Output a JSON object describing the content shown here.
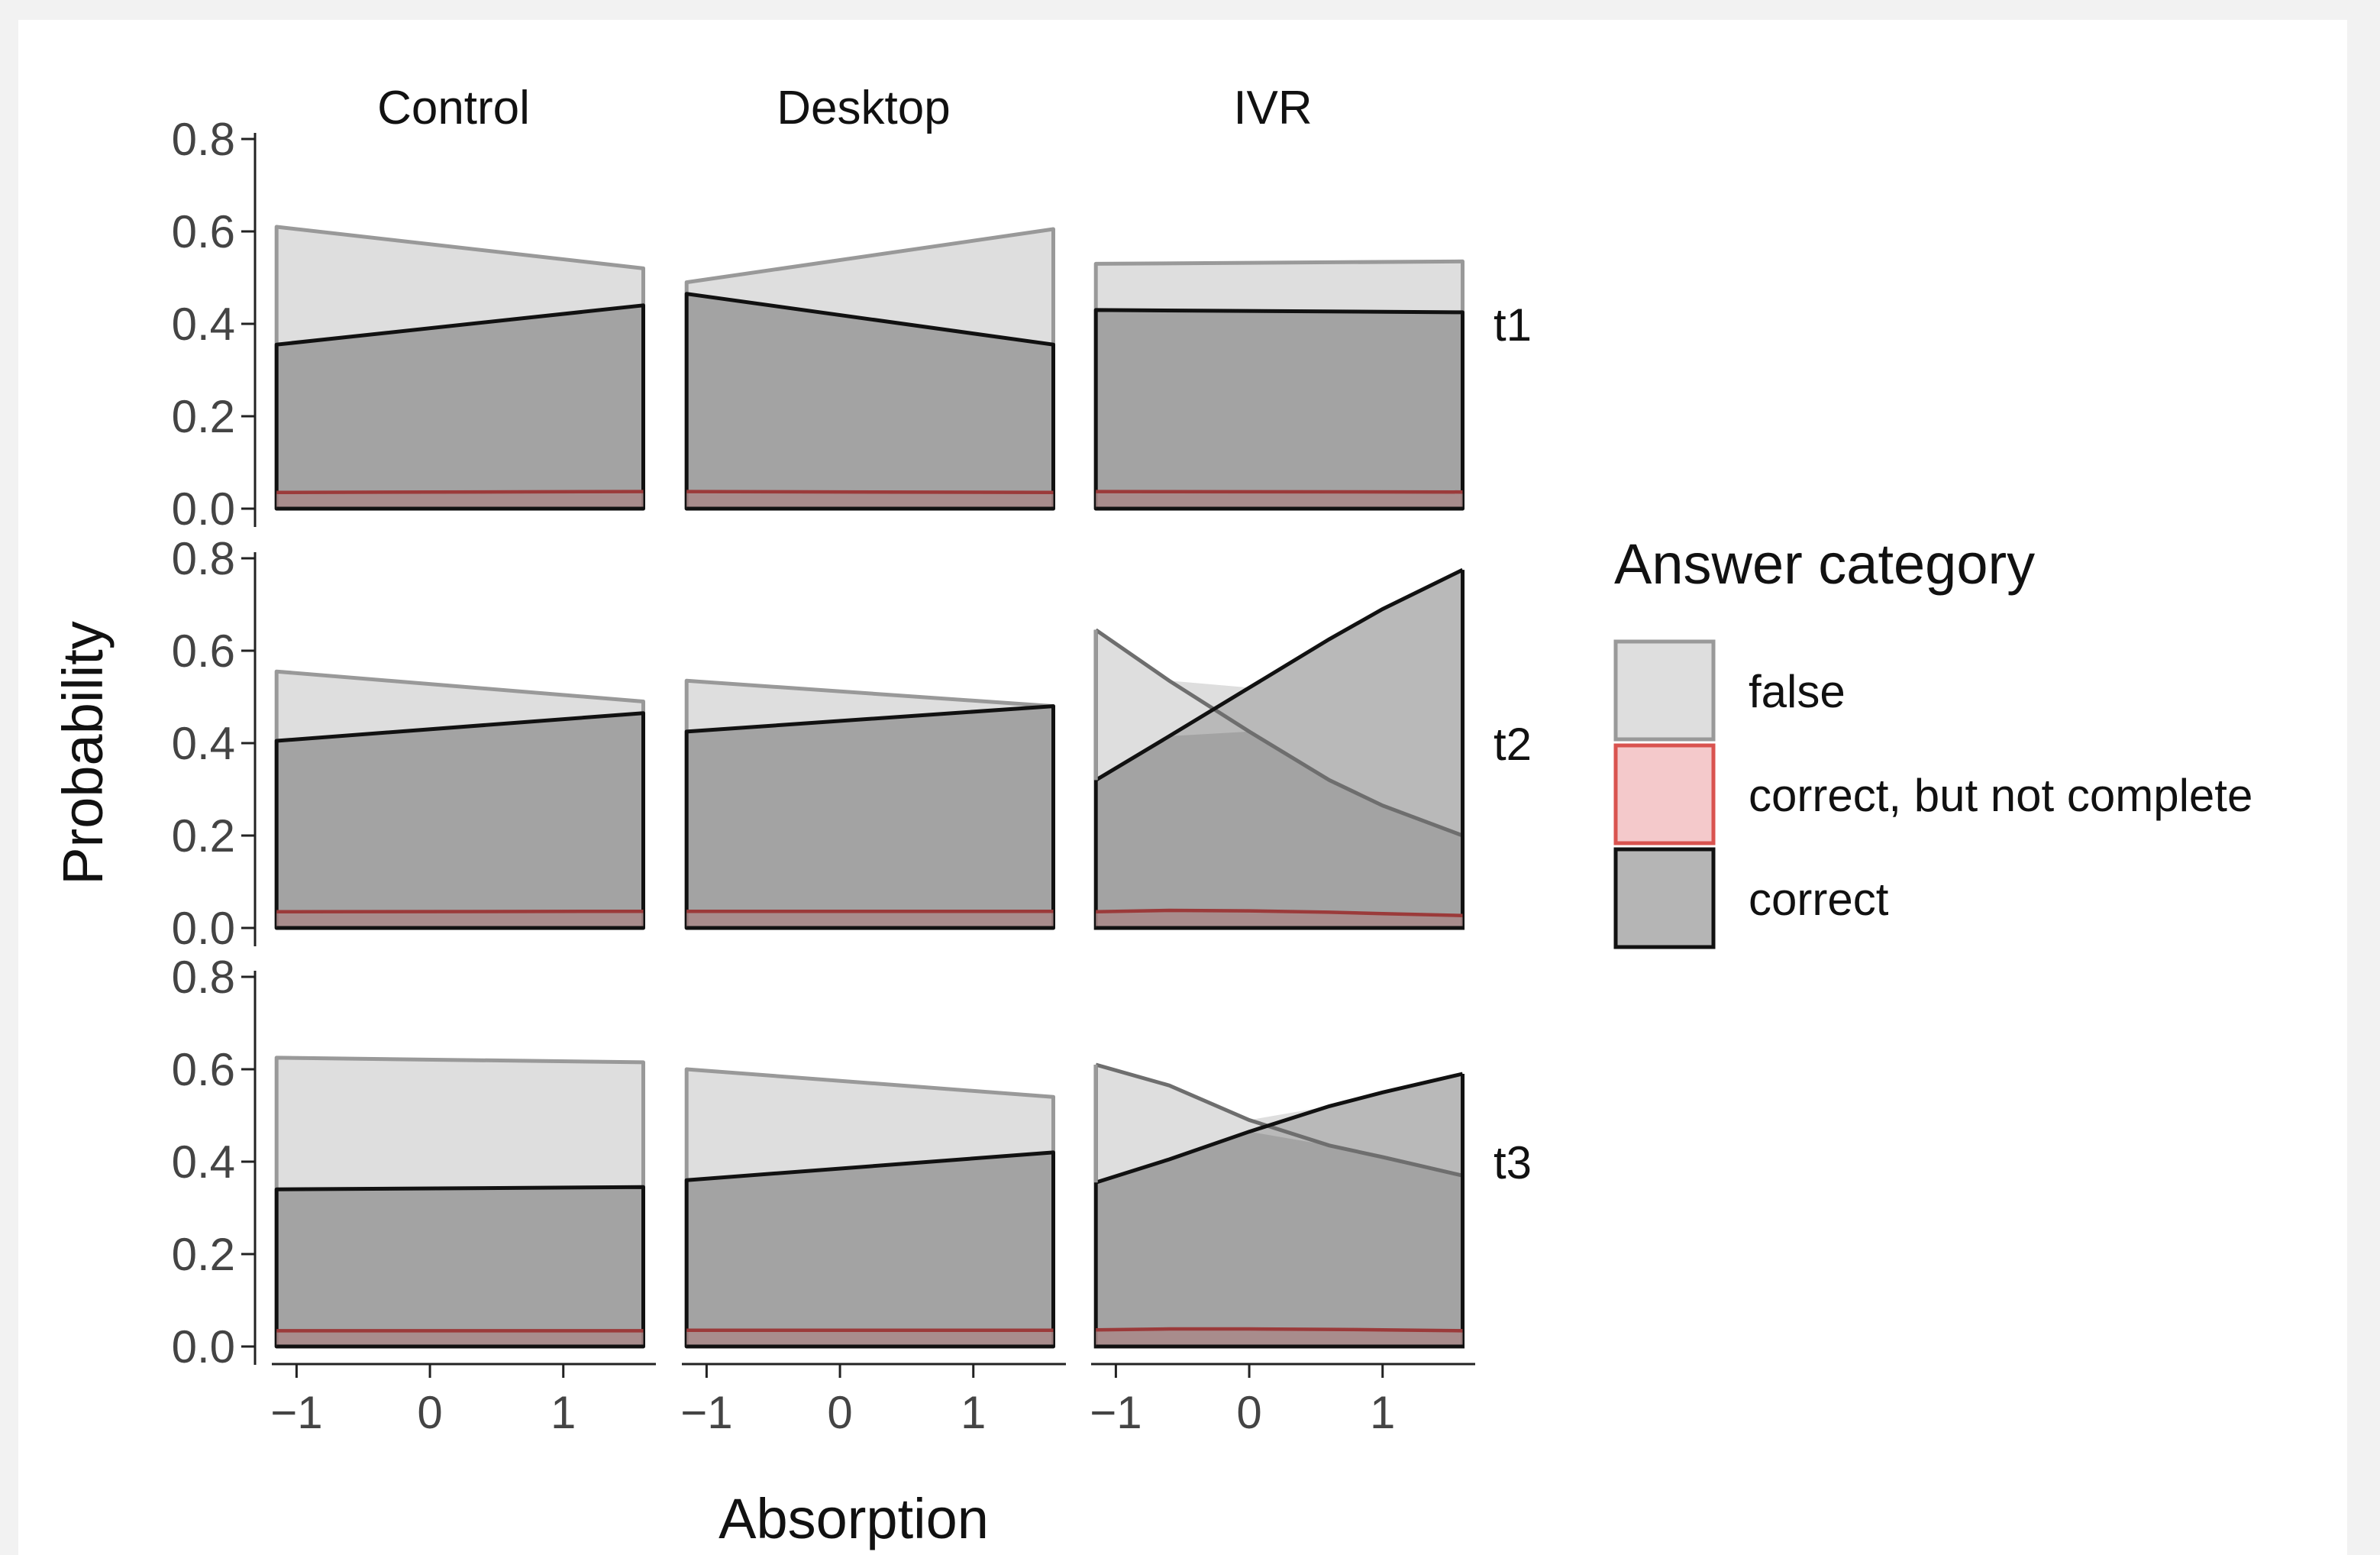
{
  "chart_data": {
    "type": "area",
    "xlabel": "Absorption",
    "ylabel": "Probability",
    "columns": [
      "Control",
      "Desktop",
      "IVR"
    ],
    "rows": [
      "t1",
      "t2",
      "t3"
    ],
    "x_ticks": [
      -1,
      0,
      1
    ],
    "x_tick_labels": [
      "−1",
      "0",
      "1"
    ],
    "xlim": [
      -1.3,
      1.7
    ],
    "x_range": [
      -1.15,
      1.6
    ],
    "y_ticks": [
      0.0,
      0.2,
      0.4,
      0.6,
      0.8
    ],
    "y_tick_labels": [
      "0.0",
      "0.2",
      "0.4",
      "0.6",
      "0.8"
    ],
    "ylim": [
      0.0,
      0.8
    ],
    "legend": {
      "title": "Answer category",
      "position": "right",
      "entries": [
        {
          "key": "false",
          "label": "false",
          "fill": "#dedede",
          "stroke": "#999999"
        },
        {
          "key": "partial",
          "label": "correct, but not complete",
          "fill": "#f4c9cb",
          "stroke": "#d9534f"
        },
        {
          "key": "correct",
          "label": "correct",
          "fill": "#b5b5b5",
          "stroke": "#111111"
        }
      ]
    },
    "colors": {
      "false_fill": "#dedede",
      "false_stroke": "#999999",
      "correct_fill": "#a3a3a3",
      "correct_stroke": "#111111",
      "partial_fill": "#a88a8a",
      "partial_stroke": "#9b3a3a",
      "crossing_fill": "#b3b3b3",
      "crossing_stroke": "#6e6e6e"
    },
    "panels": [
      {
        "row": "t1",
        "col": "Control",
        "x": [
          -1.15,
          1.6
        ],
        "false": [
          0.61,
          0.52
        ],
        "correct": [
          0.355,
          0.44
        ],
        "partial": [
          0.035,
          0.037
        ]
      },
      {
        "row": "t1",
        "col": "Desktop",
        "x": [
          -1.15,
          1.6
        ],
        "false": [
          0.49,
          0.605
        ],
        "correct": [
          0.465,
          0.355
        ],
        "partial": [
          0.037,
          0.035
        ]
      },
      {
        "row": "t1",
        "col": "IVR",
        "x": [
          -1.15,
          1.6
        ],
        "false": [
          0.53,
          0.535
        ],
        "correct": [
          0.43,
          0.425
        ],
        "partial": [
          0.037,
          0.036
        ]
      },
      {
        "row": "t2",
        "col": "Control",
        "x": [
          -1.15,
          1.6
        ],
        "false": [
          0.555,
          0.49
        ],
        "correct": [
          0.405,
          0.465
        ],
        "partial": [
          0.035,
          0.036
        ]
      },
      {
        "row": "t2",
        "col": "Desktop",
        "x": [
          -1.15,
          1.6
        ],
        "false": [
          0.535,
          0.48
        ],
        "correct": [
          0.425,
          0.48
        ],
        "partial": [
          0.036,
          0.036
        ]
      },
      {
        "row": "t2",
        "col": "IVR",
        "x": [
          -1.15,
          -0.6,
          0.0,
          0.6,
          1.0,
          1.6
        ],
        "false": [
          0.645,
          0.535,
          0.425,
          0.32,
          0.265,
          0.2
        ],
        "correct": [
          0.32,
          0.415,
          0.52,
          0.625,
          0.69,
          0.775
        ],
        "partial": [
          0.035,
          0.038,
          0.037,
          0.034,
          0.031,
          0.027
        ]
      },
      {
        "row": "t3",
        "col": "Control",
        "x": [
          -1.15,
          1.6
        ],
        "false": [
          0.625,
          0.615
        ],
        "correct": [
          0.34,
          0.345
        ],
        "partial": [
          0.034,
          0.034
        ]
      },
      {
        "row": "t3",
        "col": "Desktop",
        "x": [
          -1.15,
          1.6
        ],
        "false": [
          0.6,
          0.54
        ],
        "correct": [
          0.36,
          0.42
        ],
        "partial": [
          0.035,
          0.035
        ]
      },
      {
        "row": "t3",
        "col": "IVR",
        "x": [
          -1.15,
          -0.6,
          0.0,
          0.6,
          1.0,
          1.6
        ],
        "false": [
          0.61,
          0.565,
          0.49,
          0.435,
          0.41,
          0.37
        ],
        "correct": [
          0.355,
          0.405,
          0.465,
          0.52,
          0.55,
          0.59
        ],
        "partial": [
          0.036,
          0.038,
          0.038,
          0.037,
          0.036,
          0.034
        ]
      }
    ]
  }
}
